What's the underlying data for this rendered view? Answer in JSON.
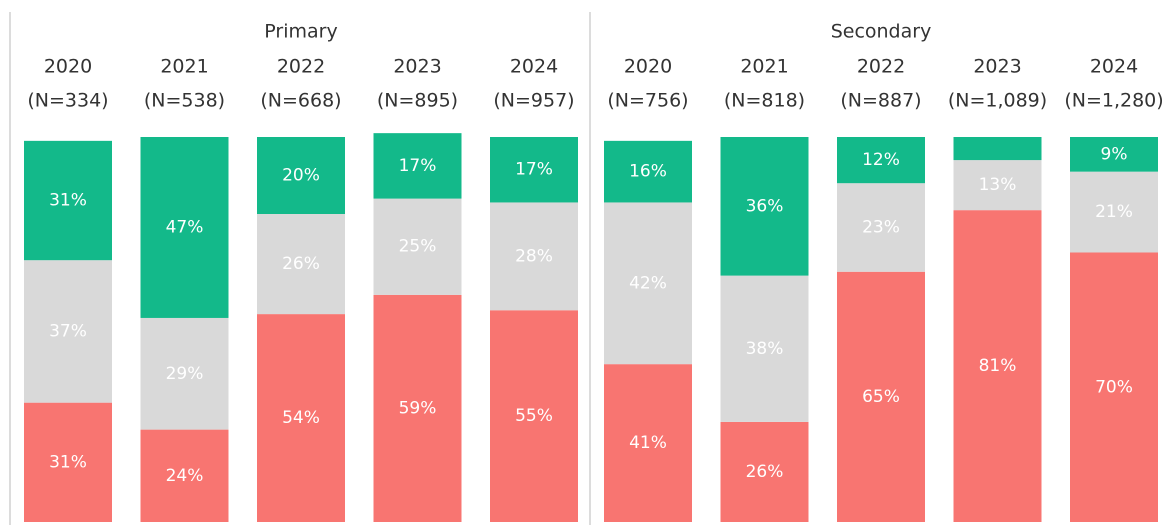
{
  "chart_data": {
    "type": "stacked_bar",
    "groups": [
      "Primary",
      "Secondary"
    ],
    "categories": [
      "2020",
      "2021",
      "2022",
      "2023",
      "2024",
      "2020",
      "2021",
      "2022",
      "2023",
      "2024"
    ],
    "sample_sizes": [
      "(N=334)",
      "(N=538)",
      "(N=668)",
      "(N=895)",
      "(N=957)",
      "(N=756)",
      "(N=818)",
      "(N=887)",
      "(N=1,089)",
      "(N=1,280)"
    ],
    "ylim": [
      0,
      100
    ],
    "series": [
      {
        "color": "#f87571",
        "label_color": "#ffffff",
        "values": [
          31,
          24,
          54,
          59,
          55,
          41,
          26,
          65,
          81,
          70
        ],
        "value_labels": [
          "31%",
          "24%",
          "54%",
          "59%",
          "55%",
          "41%",
          "26%",
          "65%",
          "81%",
          "70%"
        ]
      },
      {
        "color": "#d9d9d9",
        "label_color": "#ffffff",
        "values": [
          37,
          29,
          26,
          25,
          28,
          42,
          38,
          23,
          13,
          21
        ],
        "value_labels": [
          "37%",
          "29%",
          "26%",
          "25%",
          "28%",
          "42%",
          "38%",
          "23%",
          "13%",
          "21%"
        ]
      },
      {
        "color": "#13b98a",
        "label_color": "#ffffff",
        "values": [
          31,
          47,
          20,
          17,
          17,
          16,
          36,
          12,
          6,
          9
        ],
        "value_labels": [
          "31%",
          "47%",
          "20%",
          "17%",
          "17%",
          "16%",
          "36%",
          "12%",
          null,
          "9%"
        ]
      }
    ]
  }
}
